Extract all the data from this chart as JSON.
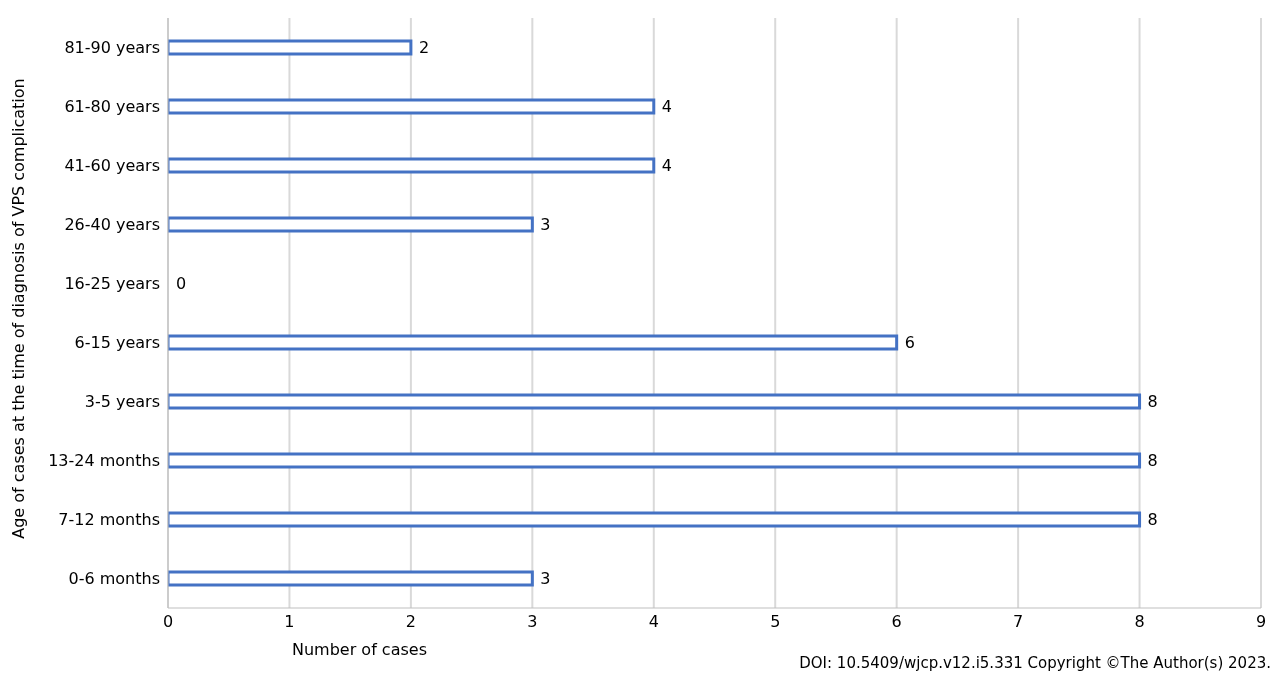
{
  "chart_data": {
    "type": "bar",
    "orientation": "horizontal",
    "xlabel": "Number of cases",
    "ylabel": "Age of cases at the time of diagnosis of VPS complication",
    "categories": [
      "81-90 years",
      "61-80 years",
      "41-60 years",
      "26-40 years",
      "16-25 years",
      "6-15 years",
      "3-5 years",
      "13-24 months",
      "7-12 months",
      "0-6 months"
    ],
    "values": [
      2,
      4,
      4,
      3,
      0,
      6,
      8,
      8,
      8,
      3
    ],
    "color": "#4472c4",
    "xlim": [
      0,
      9
    ],
    "xticks": [
      0,
      1,
      2,
      3,
      4,
      5,
      6,
      7,
      8,
      9
    ],
    "grid": "x",
    "data_labels": true,
    "annotations": [
      "DOI: 10.5409/wjcp.v12.i5.331 Copyright ©The Author(s) 2023."
    ]
  }
}
